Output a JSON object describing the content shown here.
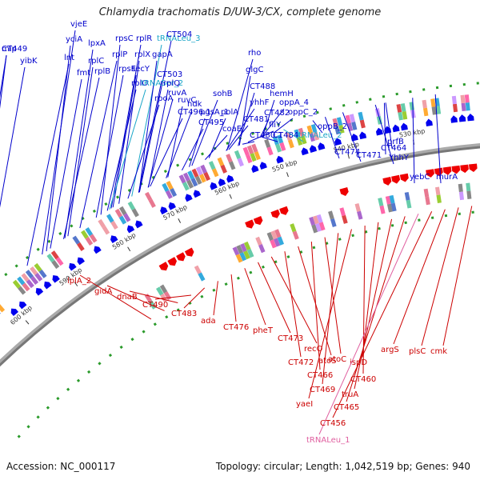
{
  "title": "Chlamydia trachomatis D/UW-3/CX, complete genome",
  "accession": "Accession: NC_000117",
  "summary": "Topology: circular; Length: 1,042,519 bp; Genes: 940",
  "colors": {
    "forward": "#0000ee",
    "reverse": "#ee0000",
    "rna_forward": "#1aa6c8",
    "rna_reverse": "#e060a0",
    "backbone": "#777777"
  },
  "scale_ticks": [
    "600 kbp",
    "590 kbp",
    "580 kbp",
    "570 kbp",
    "560 kbp",
    "550 kbp",
    "540 kbp",
    "530 kbp"
  ],
  "forward_genes": [
    "mip",
    "vjeE",
    "yibK",
    "yciA",
    "lpxA",
    "lnt",
    "rplC",
    "fmt",
    "rplB",
    "rpsC",
    "rplR",
    "rplP",
    "rplX",
    "rpsE",
    "secY",
    "rplO",
    "CT504",
    "gapA",
    "CT503",
    "rplQ",
    "ruvA",
    "rpoA",
    "ruvC",
    "ndk",
    "CT496.1",
    "pgsA_1",
    "CT495",
    "sohB",
    "polA",
    "coaE",
    "rho",
    "glgC",
    "CT488",
    "yhhF",
    "hemH",
    "CT481",
    "oppA_4",
    "CT482",
    "oppC_2",
    "fliY",
    "CT480.1",
    "CT484",
    "oppB_2",
    "CT474",
    "CT471",
    "CT464",
    "prfB",
    "YhhY",
    "yebC",
    "murA",
    "CT449"
  ],
  "forward_rna": [
    "tRNALeu_3",
    "tRNASer_2",
    "tRNALeu_2"
  ],
  "reverse_genes": [
    "lplA_2",
    "gidA",
    "dnaB",
    "CT490",
    "CT483",
    "ada",
    "CT476",
    "pheT",
    "CT473",
    "recO",
    "CT472",
    "atoS",
    "CT466",
    "atoC",
    "CT469",
    "yaeI",
    "CT460",
    "ispD",
    "truA",
    "CT465",
    "CT456",
    "argS",
    "plsC",
    "cmk"
  ],
  "reverse_rna": [
    "tRNALeu_1"
  ]
}
